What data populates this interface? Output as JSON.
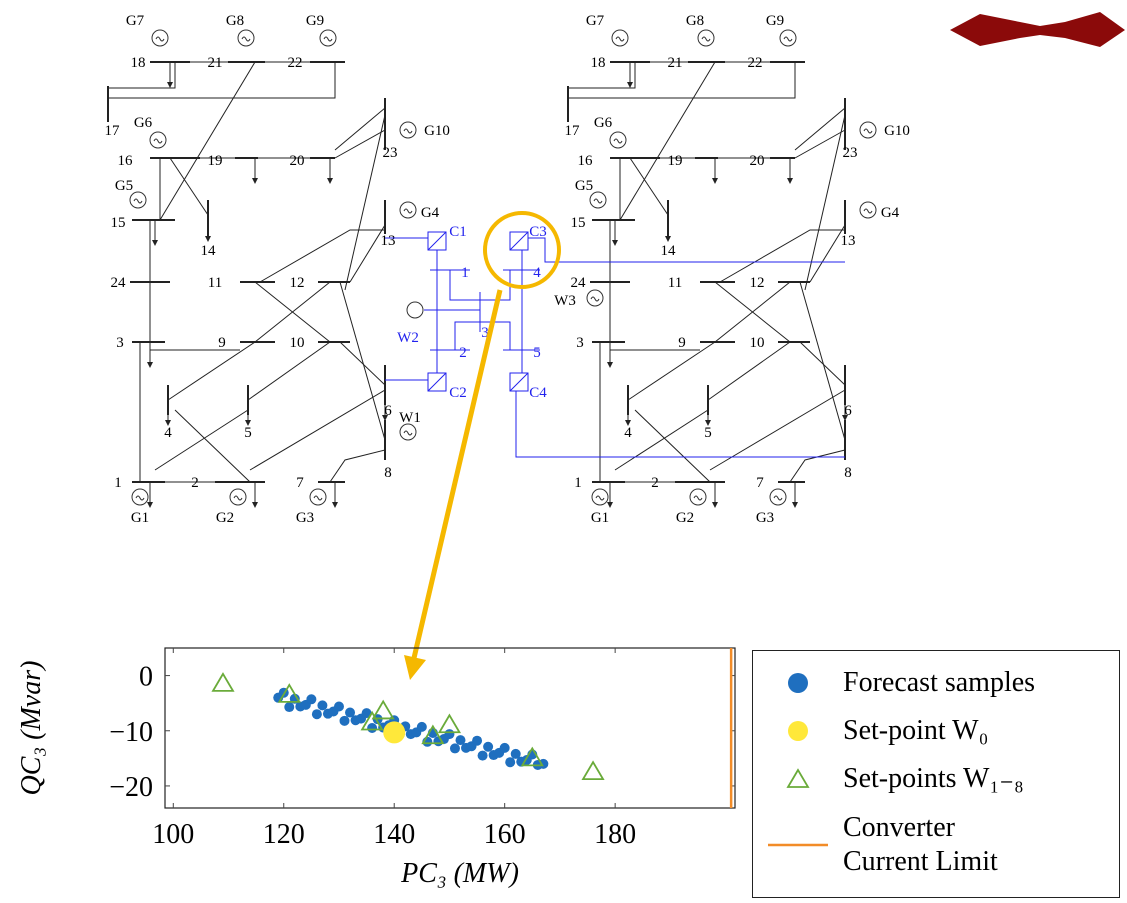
{
  "diagram": {
    "left_grid": {
      "labels": [
        "G7",
        "G8",
        "G9",
        "18",
        "21",
        "22",
        "17",
        "G6",
        "16",
        "19",
        "20",
        "23",
        "G10",
        "G5",
        "15",
        "14",
        "G4",
        "13",
        "24",
        "11",
        "12",
        "3",
        "9",
        "10",
        "6",
        "4",
        "5",
        "8",
        "1",
        "2",
        "7",
        "G1",
        "G2",
        "G3"
      ],
      "wind": "W1"
    },
    "right_grid": {
      "labels": [
        "G7",
        "G8",
        "G9",
        "18",
        "21",
        "22",
        "17",
        "G6",
        "16",
        "19",
        "20",
        "23",
        "G10",
        "G5",
        "15",
        "14",
        "G4",
        "13",
        "24",
        "11",
        "12",
        "3",
        "9",
        "10",
        "6",
        "4",
        "5",
        "8",
        "1",
        "2",
        "7",
        "G1",
        "G2",
        "G3"
      ],
      "wind": "W3"
    },
    "dc_grid": {
      "labels": [
        "C1",
        "C3",
        "1",
        "4",
        "W2",
        "3",
        "2",
        "5",
        "C2",
        "C4"
      ]
    }
  },
  "chart_data": {
    "type": "scatter",
    "xlabel": "PC₃ (MW)",
    "ylabel": "QC₃ (Mvar)",
    "xlim": [
      98.5,
      201.7
    ],
    "ylim": [
      -24,
      5
    ],
    "xticks": [
      100,
      120,
      140,
      160,
      180
    ],
    "yticks": [
      0,
      {
        "value": -10,
        "label": "−10"
      },
      {
        "value": -20,
        "label": "−20"
      }
    ],
    "series": [
      {
        "name": "Forecast samples",
        "color": "#1f6fbf",
        "marker": "circle",
        "x": [
          119,
          120,
          121,
          122,
          123,
          124,
          125,
          126,
          127,
          128,
          129,
          130,
          131,
          132,
          133,
          134,
          135,
          136,
          137,
          138,
          139,
          140,
          141,
          142,
          143,
          144,
          145,
          146,
          147,
          148,
          149,
          150,
          151,
          152,
          153,
          154,
          155,
          156,
          157,
          158,
          159,
          160,
          161,
          162,
          163,
          164,
          165,
          166,
          167
        ],
        "values": [
          -4.0,
          -3.1,
          -5.7,
          -4.2,
          -5.6,
          -5.3,
          -4.3,
          -7.0,
          -5.4,
          -6.9,
          -6.5,
          -5.6,
          -8.2,
          -6.7,
          -8.1,
          -7.8,
          -6.8,
          -9.5,
          -7.9,
          -9.4,
          -9.0,
          -8.1,
          -10.7,
          -9.2,
          -10.6,
          -10.3,
          -9.3,
          -12.0,
          -10.4,
          -11.9,
          -11.5,
          -10.6,
          -13.2,
          -11.7,
          -13.1,
          -12.8,
          -11.8,
          -14.5,
          -12.9,
          -14.4,
          -14.0,
          -13.1,
          -15.7,
          -14.2,
          -15.6,
          -15.3,
          -14.3,
          -16.2,
          -16.0
        ]
      },
      {
        "name": "Set-point W₀",
        "color": "#ffe83a",
        "marker": "circle",
        "x": [
          140
        ],
        "values": [
          -10.3
        ]
      },
      {
        "name": "Set-points W₁₋₈",
        "color": "#6aab3a",
        "marker": "triangle",
        "x": [
          109,
          121,
          138,
          136,
          150,
          147,
          165,
          176
        ],
        "values": [
          -1.5,
          -3.5,
          -6.5,
          -8.5,
          -9,
          -11,
          -15,
          -17.5
        ]
      },
      {
        "name": "Converter Current Limit",
        "color": "#f28c28",
        "marker": "line",
        "x": [
          201,
          201
        ],
        "values": [
          5,
          -24
        ]
      }
    ]
  }
}
